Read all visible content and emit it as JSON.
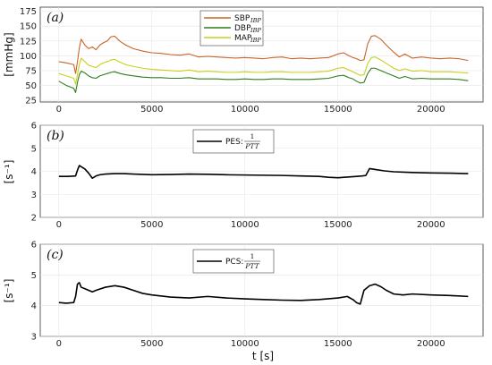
{
  "chart_data": [
    {
      "type": "line",
      "panel_label": "(a)",
      "ylabel": "[mmHg]",
      "xlabel": "",
      "xlim": [
        -1000,
        22800
      ],
      "ylim": [
        22,
        182
      ],
      "xticks": [
        0,
        5000,
        10000,
        15000,
        20000
      ],
      "yticks": [
        25,
        50,
        75,
        100,
        125,
        150,
        175
      ],
      "legend_position": "top-center",
      "series": [
        {
          "name": "SBP",
          "name_sub": "IBP",
          "color": "#c8652a",
          "x": [
            0,
            400,
            800,
            900,
            1000,
            1100,
            1200,
            1400,
            1600,
            1800,
            2000,
            2200,
            2400,
            2600,
            2800,
            3000,
            3300,
            3600,
            4000,
            4500,
            5000,
            5500,
            6000,
            6500,
            7000,
            7500,
            8000,
            8500,
            9000,
            9500,
            10000,
            10500,
            11000,
            11500,
            12000,
            12500,
            13000,
            13500,
            14000,
            14500,
            15000,
            15300,
            15600,
            15800,
            16000,
            16200,
            16400,
            16600,
            16800,
            17000,
            17300,
            17600,
            18000,
            18300,
            18600,
            19000,
            19500,
            20000,
            20500,
            21000,
            21500,
            22000
          ],
          "y": [
            90,
            88,
            85,
            70,
            90,
            113,
            128,
            118,
            112,
            115,
            110,
            118,
            122,
            125,
            132,
            133,
            124,
            118,
            112,
            108,
            105,
            104,
            102,
            101,
            103,
            98,
            99,
            98,
            97,
            96,
            97,
            96,
            95,
            97,
            98,
            95,
            96,
            95,
            96,
            97,
            103,
            105,
            100,
            97,
            95,
            92,
            93,
            120,
            133,
            134,
            128,
            118,
            106,
            98,
            103,
            96,
            98,
            96,
            95,
            96,
            95,
            92
          ]
        },
        {
          "name": "DBP",
          "name_sub": "IBP",
          "color": "#2f7d1e",
          "x": [
            0,
            400,
            800,
            900,
            1000,
            1100,
            1200,
            1400,
            1600,
            1800,
            2000,
            2200,
            2400,
            2600,
            2800,
            3000,
            3300,
            3600,
            4000,
            4500,
            5000,
            5500,
            6000,
            6500,
            7000,
            7500,
            8000,
            8500,
            9000,
            9500,
            10000,
            10500,
            11000,
            11500,
            12000,
            12500,
            13000,
            13500,
            14000,
            14500,
            15000,
            15300,
            15600,
            15800,
            16000,
            16200,
            16400,
            16600,
            16800,
            17000,
            17300,
            17600,
            18000,
            18300,
            18600,
            19000,
            19500,
            20000,
            20500,
            21000,
            21500,
            22000
          ],
          "y": [
            57,
            50,
            45,
            38,
            55,
            68,
            74,
            71,
            66,
            63,
            62,
            66,
            68,
            70,
            72,
            73,
            70,
            68,
            66,
            64,
            63,
            63,
            62,
            62,
            63,
            61,
            61,
            61,
            60,
            60,
            61,
            60,
            60,
            61,
            61,
            60,
            60,
            60,
            61,
            62,
            66,
            67,
            63,
            61,
            57,
            54,
            55,
            70,
            79,
            79,
            75,
            71,
            66,
            62,
            65,
            61,
            62,
            61,
            61,
            61,
            60,
            58
          ]
        },
        {
          "name": "MAP",
          "name_sub": "IBP",
          "color": "#c6d11a",
          "x": [
            0,
            400,
            800,
            900,
            1000,
            1100,
            1200,
            1400,
            1600,
            1800,
            2000,
            2200,
            2400,
            2600,
            2800,
            3000,
            3300,
            3600,
            4000,
            4500,
            5000,
            5500,
            6000,
            6500,
            7000,
            7500,
            8000,
            8500,
            9000,
            9500,
            10000,
            10500,
            11000,
            11500,
            12000,
            12500,
            13000,
            13500,
            14000,
            14500,
            15000,
            15300,
            15600,
            15800,
            16000,
            16200,
            16400,
            16600,
            16800,
            17000,
            17300,
            17600,
            18000,
            18300,
            18600,
            19000,
            19500,
            20000,
            20500,
            21000,
            21500,
            22000
          ],
          "y": [
            70,
            66,
            62,
            52,
            68,
            85,
            96,
            90,
            84,
            82,
            80,
            85,
            88,
            90,
            93,
            94,
            89,
            85,
            82,
            79,
            77,
            76,
            75,
            74,
            76,
            73,
            74,
            73,
            72,
            72,
            73,
            72,
            72,
            73,
            73,
            72,
            72,
            72,
            73,
            74,
            79,
            80,
            76,
            73,
            70,
            67,
            68,
            87,
            97,
            98,
            93,
            87,
            79,
            75,
            78,
            74,
            75,
            73,
            73,
            73,
            72,
            71
          ]
        }
      ]
    },
    {
      "type": "line",
      "panel_label": "(b)",
      "ylabel": "[s⁻¹]",
      "xlabel": "",
      "xlim": [
        -1000,
        22800
      ],
      "ylim": [
        2,
        6
      ],
      "xticks": [
        0,
        5000,
        10000,
        15000,
        20000
      ],
      "yticks": [
        2,
        3,
        4,
        5,
        6
      ],
      "legend_position": "top-center",
      "series": [
        {
          "name": "PES:",
          "fraction_num": "1",
          "fraction_den": "PTT",
          "color": "#000000",
          "x": [
            0,
            500,
            900,
            1000,
            1100,
            1200,
            1400,
            1600,
            1800,
            2000,
            2200,
            2500,
            3000,
            3500,
            4000,
            5000,
            6000,
            7000,
            8000,
            9000,
            10000,
            11000,
            12000,
            13000,
            14000,
            14500,
            15000,
            15500,
            16000,
            16300,
            16500,
            16700,
            17000,
            17500,
            18000,
            19000,
            20000,
            21000,
            22000
          ],
          "y": [
            3.78,
            3.78,
            3.8,
            4.05,
            4.25,
            4.2,
            4.1,
            3.92,
            3.7,
            3.8,
            3.85,
            3.88,
            3.9,
            3.9,
            3.88,
            3.85,
            3.86,
            3.88,
            3.87,
            3.85,
            3.84,
            3.83,
            3.82,
            3.8,
            3.78,
            3.74,
            3.72,
            3.75,
            3.78,
            3.8,
            3.82,
            4.12,
            4.08,
            4.02,
            3.98,
            3.95,
            3.93,
            3.92,
            3.9
          ]
        }
      ]
    },
    {
      "type": "line",
      "panel_label": "(c)",
      "ylabel": "[s⁻¹]",
      "xlabel": "t [s]",
      "xlim": [
        -1000,
        22800
      ],
      "ylim": [
        3,
        6
      ],
      "xticks": [
        0,
        5000,
        10000,
        15000,
        20000
      ],
      "yticks": [
        3,
        4,
        5,
        6
      ],
      "legend_position": "top-center",
      "series": [
        {
          "name": "PCS:",
          "fraction_num": "1",
          "fraction_den": "PTT",
          "color": "#000000",
          "x": [
            0,
            400,
            800,
            900,
            1000,
            1100,
            1200,
            1400,
            1600,
            1800,
            2000,
            2500,
            3000,
            3500,
            4000,
            4500,
            5000,
            6000,
            7000,
            8000,
            9000,
            10000,
            11000,
            12000,
            13000,
            14000,
            15000,
            15500,
            15800,
            16000,
            16200,
            16400,
            16700,
            17000,
            17300,
            17600,
            18000,
            18500,
            19000,
            20000,
            21000,
            22000
          ],
          "y": [
            4.1,
            4.08,
            4.1,
            4.3,
            4.7,
            4.75,
            4.6,
            4.55,
            4.5,
            4.45,
            4.5,
            4.6,
            4.65,
            4.6,
            4.5,
            4.4,
            4.35,
            4.28,
            4.25,
            4.3,
            4.25,
            4.22,
            4.2,
            4.18,
            4.17,
            4.2,
            4.25,
            4.3,
            4.2,
            4.1,
            4.05,
            4.5,
            4.65,
            4.7,
            4.62,
            4.5,
            4.38,
            4.35,
            4.38,
            4.35,
            4.33,
            4.3
          ]
        }
      ]
    }
  ]
}
